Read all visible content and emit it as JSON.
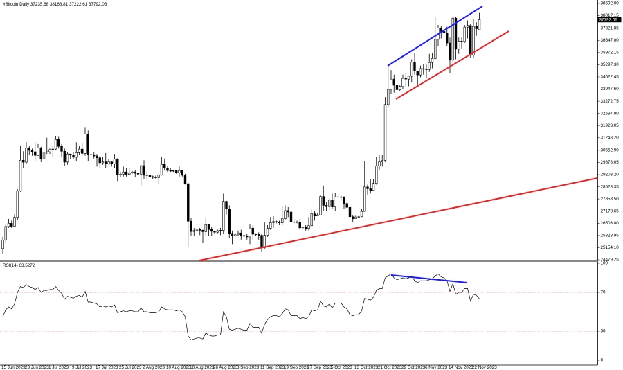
{
  "chart_data": [
    {
      "type": "candlestick",
      "title": "#Bitcoin,Daily",
      "categories": [
        "15 Jun 2023",
        null,
        null,
        null,
        null,
        null,
        null,
        null,
        "23 Jun 2023",
        null,
        null,
        null,
        null,
        null,
        null,
        null,
        "1 Jul 2023",
        null,
        null,
        null,
        null,
        null,
        null,
        null,
        "9 Jul 2023",
        null,
        null,
        null,
        null,
        null,
        null,
        null,
        "17 Jul 2023",
        null,
        null,
        null,
        null,
        null,
        null,
        null,
        "25 Jul 2023",
        null,
        null,
        null,
        null,
        null,
        null,
        null,
        "2 Aug 2023",
        null,
        null,
        null,
        null,
        null,
        null,
        null,
        "10 Aug 2023",
        null,
        null,
        null,
        null,
        null,
        null,
        null,
        "18 Aug 2023",
        null,
        null,
        null,
        null,
        null,
        null,
        null,
        "26 Aug 2023",
        null,
        null,
        null,
        null,
        null,
        null,
        null,
        "3 Sep 2023",
        null,
        null,
        null,
        null,
        null,
        null,
        null,
        "11 Sep 2023",
        null,
        null,
        null,
        null,
        null,
        null,
        null,
        "19 Sep 2023",
        null,
        null,
        null,
        null,
        null,
        null,
        null,
        "27 Sep 2023",
        null,
        null,
        null,
        null,
        null,
        null,
        null,
        "5 Oct 2023",
        null,
        null,
        null,
        null,
        null,
        null,
        null,
        "13 Oct 2023",
        null,
        null,
        null,
        null,
        null,
        null,
        null,
        "21 Oct 2023",
        null,
        null,
        null,
        null,
        null,
        null,
        null,
        "29 Oct 2023",
        null,
        null,
        null,
        null,
        null,
        null,
        null,
        "6 Nov 2023",
        null,
        null,
        null,
        null,
        null,
        null,
        null,
        "14 Nov 2023",
        null,
        null,
        null,
        null,
        null,
        null,
        null,
        "22 Nov 2023",
        null,
        null
      ],
      "open": [
        25100,
        25580,
        26330,
        26500,
        26340,
        26840,
        28300,
        30000,
        29890,
        30690,
        30550,
        30470,
        30270,
        30690,
        30080,
        30450,
        30470,
        30590,
        30620,
        31150,
        30770,
        30500,
        29900,
        30350,
        30290,
        30170,
        30420,
        30620,
        30380,
        31450,
        30320,
        30300,
        30240,
        30140,
        29860,
        29910,
        29800,
        29910,
        29800,
        30080,
        29180,
        29230,
        29350,
        29210,
        29310,
        29350,
        29280,
        29230,
        29700,
        29170,
        29180,
        29090,
        29050,
        29040,
        29180,
        29770,
        29570,
        29430,
        29400,
        29420,
        29300,
        29430,
        29170,
        28700,
        26620,
        26050,
        26100,
        26190,
        26120,
        26040,
        26430,
        26160,
        26060,
        26010,
        26090,
        26110,
        27720,
        27300,
        25940,
        25800,
        25870,
        25970,
        25830,
        25790,
        25750,
        26240,
        25900,
        25900,
        25840,
        25160,
        25840,
        26230,
        26540,
        26600,
        26570,
        26530,
        26760,
        27210,
        27130,
        26570,
        26580,
        26580,
        26250,
        26300,
        26220,
        26370,
        27030,
        26910,
        26970,
        27990,
        27500,
        27430,
        27790,
        27410,
        27950,
        27970,
        27940,
        27600,
        27390,
        26870,
        26760,
        26860,
        26870,
        27160,
        28520,
        28420,
        28330,
        28720,
        29680,
        29910,
        29990,
        33090,
        33930,
        34500,
        34160,
        33910,
        34090,
        34540,
        34500,
        34660,
        35440,
        34940,
        34730,
        35080,
        35050,
        35040,
        35420,
        35640,
        36700,
        37320,
        37140,
        37060,
        36500,
        35550,
        37880,
        36160,
        36600,
        36580,
        37380,
        37470,
        35820,
        37420,
        37235.68
      ],
      "high": [
        25750,
        26450,
        26750,
        26650,
        27000,
        28400,
        30800,
        30500,
        31000,
        30800,
        30650,
        31000,
        30900,
        30750,
        30850,
        31250,
        30650,
        30800,
        31350,
        31300,
        30900,
        30650,
        30450,
        30350,
        30450,
        31000,
        30800,
        30950,
        31800,
        31650,
        30400,
        30450,
        30350,
        30250,
        30200,
        30400,
        30050,
        29950,
        30350,
        30100,
        29350,
        29650,
        29550,
        29550,
        29400,
        29450,
        29550,
        29750,
        30000,
        29400,
        29300,
        29150,
        29150,
        29250,
        30200,
        30100,
        29700,
        29550,
        29450,
        29450,
        29650,
        29450,
        29250,
        28750,
        26800,
        26250,
        26300,
        26250,
        26150,
        26800,
        26450,
        26300,
        26100,
        26150,
        26250,
        28150,
        27750,
        27500,
        26100,
        25950,
        26100,
        26150,
        25900,
        25900,
        26450,
        26400,
        25950,
        26000,
        25900,
        26550,
        26400,
        26850,
        26900,
        26650,
        26650,
        27450,
        27500,
        27400,
        27200,
        26750,
        26650,
        26750,
        26450,
        26400,
        26850,
        27300,
        27200,
        27100,
        28050,
        28600,
        27700,
        27900,
        28150,
        28200,
        28000,
        28050,
        28000,
        27700,
        27500,
        26950,
        26950,
        26950,
        27300,
        29950,
        28650,
        28950,
        28950,
        30200,
        30300,
        30300,
        33500,
        35200,
        35000,
        34750,
        34450,
        34150,
        34750,
        34850,
        34700,
        35600,
        35950,
        34950,
        35250,
        35350,
        35300,
        35900,
        35950,
        37950,
        37500,
        37450,
        37250,
        37400,
        36800,
        37950,
        37950,
        36800,
        36850,
        37500,
        37750,
        37550,
        37850,
        37650,
        38168.81
      ],
      "low": [
        24800,
        25400,
        26250,
        26250,
        26300,
        26700,
        28250,
        29550,
        29800,
        30300,
        30250,
        29950,
        30250,
        29900,
        30000,
        30350,
        30350,
        30200,
        30550,
        30650,
        30200,
        29700,
        29750,
        30050,
        30050,
        29950,
        30300,
        30250,
        30250,
        29950,
        30250,
        30100,
        29650,
        29550,
        29750,
        29550,
        29750,
        29650,
        29550,
        28850,
        29050,
        29100,
        29100,
        29150,
        29250,
        29050,
        29100,
        28600,
        28950,
        28950,
        28750,
        28950,
        28950,
        28700,
        29150,
        29450,
        29350,
        29350,
        29350,
        29250,
        29100,
        29100,
        28650,
        25200,
        25800,
        25800,
        25950,
        25850,
        25400,
        25800,
        25800,
        25800,
        25950,
        25950,
        25850,
        25900,
        27000,
        25700,
        25350,
        25750,
        25800,
        25600,
        25400,
        25600,
        25350,
        25600,
        25800,
        25600,
        24900,
        25100,
        25750,
        26150,
        26250,
        26500,
        26400,
        26400,
        26700,
        26850,
        26350,
        26500,
        26500,
        26150,
        25950,
        26100,
        26100,
        26300,
        26650,
        26900,
        26950,
        27200,
        27200,
        27250,
        27300,
        27200,
        27850,
        27750,
        27300,
        27300,
        26600,
        26550,
        26750,
        26800,
        26850,
        27150,
        28100,
        28150,
        28300,
        28650,
        29450,
        29650,
        29900,
        32900,
        33700,
        33750,
        33550,
        33850,
        33950,
        34050,
        34100,
        34350,
        34750,
        34150,
        34600,
        34750,
        34550,
        34900,
        35100,
        35550,
        36350,
        36750,
        36800,
        36350,
        34850,
        35400,
        35600,
        35900,
        36200,
        36500,
        36750,
        35700,
        35650,
        36900,
        37222.61
      ],
      "close": [
        25580,
        26330,
        26500,
        26340,
        26840,
        28300,
        30000,
        29890,
        30690,
        30550,
        30470,
        30270,
        30690,
        30080,
        30450,
        30470,
        30590,
        30620,
        31150,
        30770,
        30500,
        29900,
        30350,
        30290,
        30170,
        30420,
        30620,
        30380,
        31450,
        30320,
        30300,
        30240,
        30140,
        29860,
        29910,
        29800,
        29910,
        29800,
        30080,
        29180,
        29230,
        29350,
        29210,
        29310,
        29350,
        29280,
        29230,
        29700,
        29170,
        29180,
        29090,
        29050,
        29040,
        29180,
        29770,
        29570,
        29430,
        29400,
        29420,
        29300,
        29430,
        29170,
        28700,
        26620,
        26050,
        26100,
        26190,
        26120,
        26040,
        26430,
        26160,
        26060,
        26010,
        26090,
        26110,
        27720,
        27300,
        25940,
        25800,
        25870,
        25970,
        25830,
        25790,
        25750,
        26240,
        25900,
        25900,
        25840,
        25160,
        25840,
        26230,
        26540,
        26600,
        26570,
        26530,
        26760,
        27210,
        27130,
        26570,
        26580,
        26580,
        26250,
        26300,
        26220,
        26370,
        27030,
        26910,
        26970,
        27990,
        27500,
        27430,
        27790,
        27410,
        27950,
        27970,
        27940,
        27600,
        27390,
        26870,
        26760,
        26860,
        26870,
        27160,
        28520,
        28420,
        28330,
        28720,
        29680,
        29910,
        29990,
        33090,
        33930,
        34500,
        34160,
        33910,
        34090,
        34540,
        34500,
        34660,
        35440,
        34940,
        34730,
        35080,
        35050,
        35040,
        35420,
        35640,
        36700,
        37320,
        37140,
        37060,
        36500,
        35550,
        37880,
        36160,
        36600,
        36580,
        37380,
        37470,
        35820,
        37420,
        37290,
        37792.06
      ],
      "ylim": [
        24479.25,
        38692.0
      ],
      "yticks": [
        {
          "value": 38692.0,
          "label": "38692.00"
        },
        38017.15,
        37321.85,
        {
          "value": 36647.0,
          "label": "36647.00"
        },
        35972.15,
        {
          "value": 35297.3,
          "label": "35297.30"
        },
        34622.45,
        {
          "value": 33947.6,
          "label": "33947.60"
        },
        33272.75,
        {
          "value": 32597.9,
          "label": "32597.90"
        },
        31923.05,
        {
          "value": 31248.2,
          "label": "31248.20"
        },
        {
          "value": 30552.9,
          "label": "30552.90"
        },
        29878.05,
        {
          "value": 29203.2,
          "label": "29203.20"
        },
        28528.35,
        {
          "value": 27853.5,
          "label": "27853.50"
        },
        27178.65,
        {
          "value": 26503.8,
          "label": "26503.80"
        },
        25828.95,
        {
          "value": 25154.1,
          "label": "25154.10"
        },
        24479.25
      ],
      "color": "#000000"
    },
    {
      "type": "line",
      "title": "RSI(14)",
      "values": [
        45,
        52,
        55,
        53,
        58,
        70,
        76,
        75,
        78,
        76,
        75,
        73,
        75,
        70,
        72,
        72,
        73,
        73,
        76,
        72,
        69,
        63,
        66,
        65,
        64,
        66,
        67,
        65,
        71,
        60,
        60,
        59,
        58,
        55,
        56,
        55,
        56,
        55,
        57,
        49,
        50,
        51,
        50,
        51,
        51,
        50,
        50,
        54,
        50,
        50,
        49,
        49,
        49,
        50,
        55,
        53,
        52,
        52,
        52,
        51,
        52,
        50,
        45,
        25,
        21,
        22,
        23,
        23,
        22,
        28,
        26,
        25,
        25,
        26,
        26,
        50,
        45,
        32,
        31,
        32,
        33,
        32,
        31,
        31,
        38,
        34,
        34,
        34,
        28,
        37,
        42,
        45,
        46,
        46,
        45,
        48,
        53,
        52,
        46,
        46,
        46,
        43,
        44,
        43,
        45,
        52,
        51,
        52,
        61,
        56,
        55,
        58,
        54,
        59,
        59,
        59,
        55,
        53,
        47,
        46,
        47,
        47,
        51,
        64,
        63,
        62,
        65,
        72,
        74,
        74,
        85,
        87,
        89,
        85,
        83,
        84,
        85,
        84,
        85,
        87,
        82,
        80,
        82,
        82,
        82,
        83,
        84,
        87,
        89,
        86,
        85,
        82,
        71,
        79,
        68,
        70,
        70,
        74,
        74,
        61,
        68,
        67,
        63.5272
      ],
      "ylim": [
        0,
        100
      ],
      "yticks": [
        100,
        70,
        30,
        0
      ],
      "color": "#000000",
      "level_color": "#e03030"
    }
  ]
}
